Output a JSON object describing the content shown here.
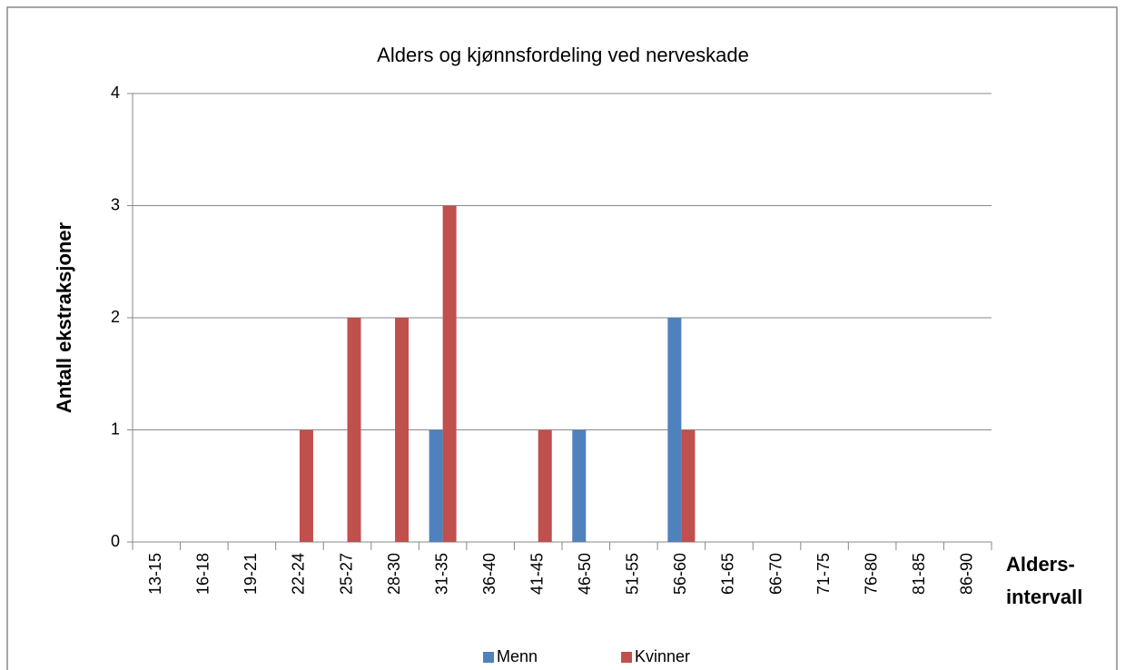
{
  "chart_data": {
    "type": "bar",
    "title": "Alders og kjønnsfordeling ved nerveskade",
    "y_label": "Antall ekstraksjoner",
    "x_label": [
      "Alders-",
      "intervall"
    ],
    "categories": [
      "13-15",
      "16-18",
      "19-21",
      "22-24",
      "25-27",
      "28-30",
      "31-35",
      "36-40",
      "41-45",
      "46-50",
      "51-55",
      "56-60",
      "61-65",
      "66-70",
      "71-75",
      "76-80",
      "81-85",
      "86-90"
    ],
    "series": [
      {
        "name": "Menn",
        "color": "#4f81bd",
        "values": [
          0,
          0,
          0,
          0,
          0,
          0,
          1,
          0,
          0,
          1,
          0,
          2,
          0,
          0,
          0,
          0,
          0,
          0
        ]
      },
      {
        "name": "Kvinner",
        "color": "#c0504d",
        "values": [
          0,
          0,
          0,
          1,
          2,
          2,
          3,
          0,
          1,
          0,
          0,
          1,
          0,
          0,
          0,
          0,
          0,
          0
        ]
      }
    ],
    "ylim": [
      0,
      4
    ],
    "yticks": [
      0,
      1,
      2,
      3,
      4
    ],
    "grid": true,
    "legend": "bottom"
  }
}
